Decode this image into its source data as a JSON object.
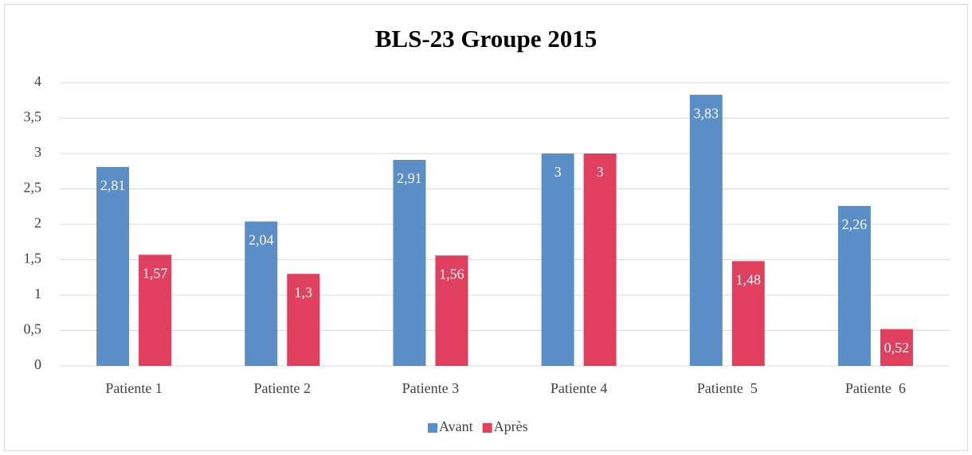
{
  "chart_data": {
    "type": "bar",
    "title": "BLS-23 Groupe 2015",
    "categories": [
      "Patiente 1",
      "Patiente 2",
      "Patiente 3",
      "Patiente 4",
      "Patiente  5",
      "Patiente  6"
    ],
    "series": [
      {
        "name": "Avant",
        "color": "#5b8ec6",
        "values": [
          2.81,
          2.04,
          2.91,
          3,
          3.83,
          2.26
        ],
        "value_labels": [
          "2,81",
          "2,04",
          "2,91",
          "3",
          "3,83",
          "2,26"
        ]
      },
      {
        "name": "Après",
        "color": "#e0405e",
        "values": [
          1.57,
          1.3,
          1.56,
          3,
          1.48,
          0.52
        ],
        "value_labels": [
          "1,57",
          "1,3",
          "1,56",
          "3",
          "1,48",
          "0,52"
        ]
      }
    ],
    "ylim": [
      0,
      4
    ],
    "yticks": [
      0,
      {
        "value": 0.5,
        "label": "0,5"
      },
      1,
      {
        "value": 1.5,
        "label": "1,5"
      },
      2,
      {
        "value": 2.5,
        "label": "2,5"
      },
      3,
      {
        "value": 3.5,
        "label": "3,5"
      },
      4
    ],
    "grid": true,
    "legend": "bottom"
  }
}
